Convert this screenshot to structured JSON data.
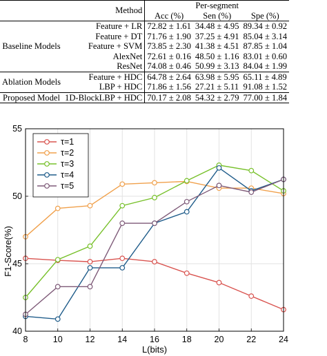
{
  "table": {
    "header": {
      "method": "Method",
      "group": "Per-segment",
      "columns": [
        "Acc (%)",
        "Sen (%)",
        "Spe (%)"
      ]
    },
    "groups": [
      {
        "name": "Baseline Models",
        "rows": [
          {
            "method": "Feature + LR",
            "acc": "72.82 ± 1.61",
            "sen": "34.48 ± 4.95",
            "spe": "89.34 ± 0.92"
          },
          {
            "method": "Feature + DT",
            "acc": "71.76 ± 1.90",
            "sen": "37.25 ± 4.91",
            "spe": "85.04 ± 3.14"
          },
          {
            "method": "Feature + SVM",
            "acc": "73.85 ± 2.30",
            "sen": "41.38 ± 4.51",
            "spe": "87.85 ± 1.04"
          },
          {
            "method": "AlexNet",
            "acc": "72.61 ± 0.16",
            "sen": "48.50 ± 1.16",
            "spe": "83.01 ± 0.60"
          },
          {
            "method": "ResNet",
            "acc": "74.08 ± 0.46",
            "sen": "50.99 ± 3.13",
            "spe": "84.04 ± 1.99"
          }
        ]
      },
      {
        "name": "Ablation Models",
        "rows": [
          {
            "method": "Feature + HDC",
            "acc": "64.78 ± 2.64",
            "sen": "63.98 ± 5.95",
            "spe": "65.11 ± 4.89"
          },
          {
            "method": "LBP + HDC",
            "acc": "71.86 ± 1.56",
            "sen": "27.21 ± 5.11",
            "spe": "91.08 ± 1.52"
          }
        ]
      },
      {
        "name": "Proposed Model",
        "rows": [
          {
            "method": "1D-BlockLBP + HDC",
            "acc": "70.17 ± 2.08",
            "sen": "54.32 ± 2.79",
            "spe": "77.00 ± 1.84"
          }
        ]
      }
    ]
  },
  "chart_data": {
    "type": "line",
    "xlabel": "L(bits)",
    "ylabel": "F1-Score(%)",
    "xlim": [
      8,
      24
    ],
    "ylim": [
      40,
      55
    ],
    "xticks": [
      8,
      10,
      12,
      14,
      16,
      18,
      20,
      22,
      24
    ],
    "yticks": [
      40,
      45,
      50,
      55
    ],
    "grid": "dashed horizontal and vertical",
    "legend_position": "top-left",
    "x": [
      8,
      10,
      12,
      14,
      16,
      18,
      20,
      22,
      24
    ],
    "series": [
      {
        "name": "τ=1",
        "color": "#d9534f",
        "values": [
          45.4,
          45.25,
          45.15,
          45.4,
          45.15,
          44.3,
          43.6,
          42.6,
          41.6
        ]
      },
      {
        "name": "τ=2",
        "color": "#f0a04b",
        "values": [
          47.0,
          49.1,
          49.3,
          50.9,
          51.0,
          51.1,
          50.6,
          50.6,
          50.2
        ]
      },
      {
        "name": "τ=3",
        "color": "#77c02a",
        "values": [
          42.5,
          45.3,
          46.3,
          49.3,
          49.9,
          51.15,
          52.3,
          51.9,
          50.4
        ]
      },
      {
        "name": "τ=4",
        "color": "#1f5c8a",
        "values": [
          41.1,
          40.9,
          44.7,
          44.7,
          48.0,
          48.85,
          52.1,
          50.4,
          51.25
        ]
      },
      {
        "name": "τ=5",
        "color": "#7e5a78",
        "values": [
          41.25,
          43.3,
          43.3,
          48.0,
          48.0,
          49.6,
          50.8,
          50.3,
          51.25
        ]
      }
    ]
  }
}
